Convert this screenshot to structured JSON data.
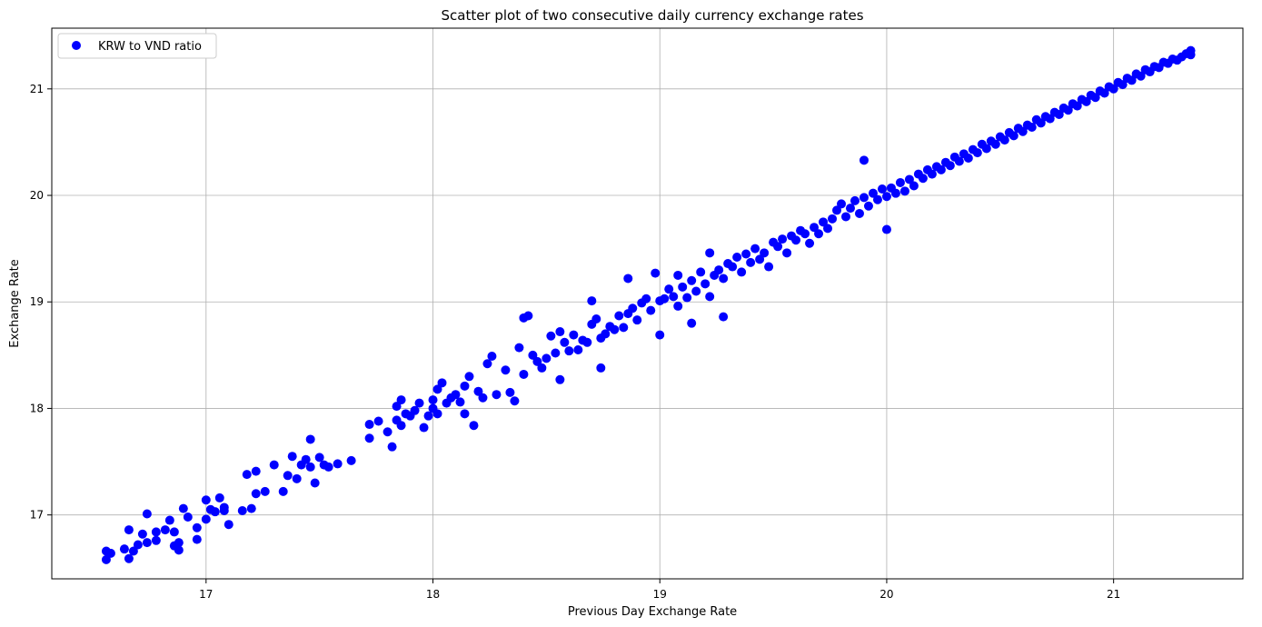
{
  "chart_data": {
    "type": "scatter",
    "title": "Scatter plot of two consecutive daily currency exchange rates",
    "xlabel": "Previous Day Exchange Rate",
    "ylabel": "Exchange Rate",
    "xlim": [
      16.32,
      21.57
    ],
    "ylim": [
      16.4,
      21.57
    ],
    "xticks": [
      17,
      18,
      19,
      20,
      21
    ],
    "yticks": [
      17,
      18,
      19,
      20,
      21
    ],
    "grid": true,
    "legend_position": "top-left",
    "series": [
      {
        "name": "KRW to VND ratio",
        "color": "#0000ff",
        "points": [
          [
            16.56,
            16.58
          ],
          [
            16.56,
            16.66
          ],
          [
            16.58,
            16.64
          ],
          [
            16.64,
            16.68
          ],
          [
            16.66,
            16.59
          ],
          [
            16.66,
            16.86
          ],
          [
            16.68,
            16.66
          ],
          [
            16.7,
            16.72
          ],
          [
            16.72,
            16.82
          ],
          [
            16.74,
            16.74
          ],
          [
            16.74,
            17.01
          ],
          [
            16.78,
            16.76
          ],
          [
            16.78,
            16.84
          ],
          [
            16.82,
            16.86
          ],
          [
            16.84,
            16.95
          ],
          [
            16.86,
            16.71
          ],
          [
            16.86,
            16.84
          ],
          [
            16.88,
            16.74
          ],
          [
            16.88,
            16.67
          ],
          [
            16.9,
            17.06
          ],
          [
            16.92,
            16.98
          ],
          [
            16.96,
            16.77
          ],
          [
            16.96,
            16.88
          ],
          [
            17.0,
            16.96
          ],
          [
            17.0,
            17.14
          ],
          [
            17.02,
            17.05
          ],
          [
            17.04,
            17.03
          ],
          [
            17.06,
            17.16
          ],
          [
            17.08,
            17.04
          ],
          [
            17.08,
            17.07
          ],
          [
            17.1,
            16.91
          ],
          [
            17.16,
            17.04
          ],
          [
            17.18,
            17.38
          ],
          [
            17.2,
            17.06
          ],
          [
            17.22,
            17.2
          ],
          [
            17.22,
            17.41
          ],
          [
            17.26,
            17.22
          ],
          [
            17.3,
            17.47
          ],
          [
            17.34,
            17.22
          ],
          [
            17.36,
            17.37
          ],
          [
            17.38,
            17.55
          ],
          [
            17.4,
            17.34
          ],
          [
            17.42,
            17.47
          ],
          [
            17.44,
            17.52
          ],
          [
            17.46,
            17.71
          ],
          [
            17.46,
            17.45
          ],
          [
            17.48,
            17.3
          ],
          [
            17.5,
            17.54
          ],
          [
            17.52,
            17.47
          ],
          [
            17.54,
            17.45
          ],
          [
            17.58,
            17.48
          ],
          [
            17.64,
            17.51
          ],
          [
            17.72,
            17.72
          ],
          [
            17.72,
            17.85
          ],
          [
            17.76,
            17.88
          ],
          [
            17.8,
            17.78
          ],
          [
            17.82,
            17.64
          ],
          [
            17.84,
            17.89
          ],
          [
            17.84,
            18.02
          ],
          [
            17.86,
            17.84
          ],
          [
            17.86,
            18.08
          ],
          [
            17.88,
            17.95
          ],
          [
            17.9,
            17.93
          ],
          [
            17.92,
            17.98
          ],
          [
            17.94,
            18.05
          ],
          [
            17.96,
            17.82
          ],
          [
            17.98,
            17.93
          ],
          [
            18.0,
            18.0
          ],
          [
            18.0,
            18.08
          ],
          [
            18.02,
            17.95
          ],
          [
            18.02,
            18.18
          ],
          [
            18.04,
            18.24
          ],
          [
            18.06,
            18.05
          ],
          [
            18.08,
            18.1
          ],
          [
            18.1,
            18.13
          ],
          [
            18.12,
            18.06
          ],
          [
            18.14,
            17.95
          ],
          [
            18.14,
            18.21
          ],
          [
            18.16,
            18.3
          ],
          [
            18.18,
            17.84
          ],
          [
            18.2,
            18.16
          ],
          [
            18.22,
            18.1
          ],
          [
            18.24,
            18.42
          ],
          [
            18.26,
            18.49
          ],
          [
            18.28,
            18.13
          ],
          [
            18.32,
            18.36
          ],
          [
            18.34,
            18.15
          ],
          [
            18.36,
            18.07
          ],
          [
            18.38,
            18.57
          ],
          [
            18.4,
            18.32
          ],
          [
            18.4,
            18.85
          ],
          [
            18.42,
            18.87
          ],
          [
            18.44,
            18.5
          ],
          [
            18.46,
            18.44
          ],
          [
            18.48,
            18.38
          ],
          [
            18.5,
            18.47
          ],
          [
            18.52,
            18.68
          ],
          [
            18.54,
            18.52
          ],
          [
            18.56,
            18.27
          ],
          [
            18.56,
            18.72
          ],
          [
            18.58,
            18.62
          ],
          [
            18.6,
            18.54
          ],
          [
            18.62,
            18.69
          ],
          [
            18.64,
            18.55
          ],
          [
            18.66,
            18.64
          ],
          [
            18.68,
            18.62
          ],
          [
            18.7,
            18.79
          ],
          [
            18.7,
            19.01
          ],
          [
            18.72,
            18.84
          ],
          [
            18.74,
            18.38
          ],
          [
            18.74,
            18.66
          ],
          [
            18.76,
            18.7
          ],
          [
            18.78,
            18.77
          ],
          [
            18.8,
            18.74
          ],
          [
            18.82,
            18.87
          ],
          [
            18.84,
            18.76
          ],
          [
            18.86,
            18.89
          ],
          [
            18.86,
            19.22
          ],
          [
            18.88,
            18.94
          ],
          [
            18.9,
            18.83
          ],
          [
            18.92,
            18.99
          ],
          [
            18.94,
            19.03
          ],
          [
            18.96,
            18.92
          ],
          [
            18.98,
            19.27
          ],
          [
            19.0,
            19.01
          ],
          [
            19.0,
            18.69
          ],
          [
            19.02,
            19.03
          ],
          [
            19.04,
            19.12
          ],
          [
            19.06,
            19.05
          ],
          [
            19.08,
            18.96
          ],
          [
            19.08,
            19.25
          ],
          [
            19.1,
            19.14
          ],
          [
            19.12,
            19.04
          ],
          [
            19.14,
            18.8
          ],
          [
            19.14,
            19.2
          ],
          [
            19.16,
            19.1
          ],
          [
            19.18,
            19.28
          ],
          [
            19.2,
            19.17
          ],
          [
            19.22,
            19.05
          ],
          [
            19.22,
            19.46
          ],
          [
            19.24,
            19.25
          ],
          [
            19.26,
            19.3
          ],
          [
            19.28,
            18.86
          ],
          [
            19.28,
            19.22
          ],
          [
            19.3,
            19.36
          ],
          [
            19.32,
            19.33
          ],
          [
            19.34,
            19.42
          ],
          [
            19.36,
            19.28
          ],
          [
            19.38,
            19.45
          ],
          [
            19.4,
            19.37
          ],
          [
            19.42,
            19.5
          ],
          [
            19.44,
            19.4
          ],
          [
            19.46,
            19.46
          ],
          [
            19.48,
            19.33
          ],
          [
            19.5,
            19.56
          ],
          [
            19.52,
            19.52
          ],
          [
            19.54,
            19.59
          ],
          [
            19.56,
            19.46
          ],
          [
            19.58,
            19.62
          ],
          [
            19.6,
            19.58
          ],
          [
            19.62,
            19.67
          ],
          [
            19.64,
            19.64
          ],
          [
            19.66,
            19.55
          ],
          [
            19.68,
            19.7
          ],
          [
            19.7,
            19.64
          ],
          [
            19.72,
            19.75
          ],
          [
            19.74,
            19.69
          ],
          [
            19.76,
            19.78
          ],
          [
            19.78,
            19.86
          ],
          [
            19.8,
            19.92
          ],
          [
            19.82,
            19.8
          ],
          [
            19.84,
            19.88
          ],
          [
            19.86,
            19.95
          ],
          [
            19.88,
            19.83
          ],
          [
            19.9,
            20.33
          ],
          [
            19.9,
            19.98
          ],
          [
            19.92,
            19.9
          ],
          [
            19.94,
            20.02
          ],
          [
            19.96,
            19.96
          ],
          [
            19.98,
            20.06
          ],
          [
            20.0,
            19.99
          ],
          [
            20.0,
            19.68
          ],
          [
            20.02,
            20.07
          ],
          [
            20.04,
            20.02
          ],
          [
            20.06,
            20.12
          ],
          [
            20.08,
            20.04
          ],
          [
            20.1,
            20.15
          ],
          [
            20.12,
            20.09
          ],
          [
            20.14,
            20.2
          ],
          [
            20.16,
            20.16
          ],
          [
            20.18,
            20.24
          ],
          [
            20.2,
            20.2
          ],
          [
            20.22,
            20.27
          ],
          [
            20.24,
            20.24
          ],
          [
            20.26,
            20.31
          ],
          [
            20.28,
            20.28
          ],
          [
            20.3,
            20.36
          ],
          [
            20.32,
            20.32
          ],
          [
            20.34,
            20.39
          ],
          [
            20.36,
            20.35
          ],
          [
            20.38,
            20.43
          ],
          [
            20.4,
            20.4
          ],
          [
            20.42,
            20.48
          ],
          [
            20.44,
            20.44
          ],
          [
            20.46,
            20.51
          ],
          [
            20.48,
            20.48
          ],
          [
            20.5,
            20.55
          ],
          [
            20.52,
            20.52
          ],
          [
            20.54,
            20.59
          ],
          [
            20.56,
            20.56
          ],
          [
            20.58,
            20.63
          ],
          [
            20.6,
            20.6
          ],
          [
            20.62,
            20.66
          ],
          [
            20.64,
            20.64
          ],
          [
            20.66,
            20.71
          ],
          [
            20.68,
            20.68
          ],
          [
            20.7,
            20.74
          ],
          [
            20.72,
            20.72
          ],
          [
            20.74,
            20.78
          ],
          [
            20.76,
            20.76
          ],
          [
            20.78,
            20.82
          ],
          [
            20.8,
            20.8
          ],
          [
            20.82,
            20.86
          ],
          [
            20.84,
            20.84
          ],
          [
            20.86,
            20.9
          ],
          [
            20.88,
            20.88
          ],
          [
            20.9,
            20.94
          ],
          [
            20.92,
            20.92
          ],
          [
            20.94,
            20.98
          ],
          [
            20.96,
            20.96
          ],
          [
            20.98,
            21.02
          ],
          [
            21.0,
            21.0
          ],
          [
            21.02,
            21.06
          ],
          [
            21.04,
            21.04
          ],
          [
            21.06,
            21.1
          ],
          [
            21.08,
            21.08
          ],
          [
            21.1,
            21.14
          ],
          [
            21.12,
            21.12
          ],
          [
            21.14,
            21.18
          ],
          [
            21.16,
            21.16
          ],
          [
            21.18,
            21.21
          ],
          [
            21.2,
            21.2
          ],
          [
            21.22,
            21.25
          ],
          [
            21.24,
            21.24
          ],
          [
            21.26,
            21.28
          ],
          [
            21.28,
            21.27
          ],
          [
            21.3,
            21.3
          ],
          [
            21.32,
            21.33
          ],
          [
            21.34,
            21.32
          ],
          [
            21.34,
            21.36
          ]
        ]
      }
    ]
  }
}
